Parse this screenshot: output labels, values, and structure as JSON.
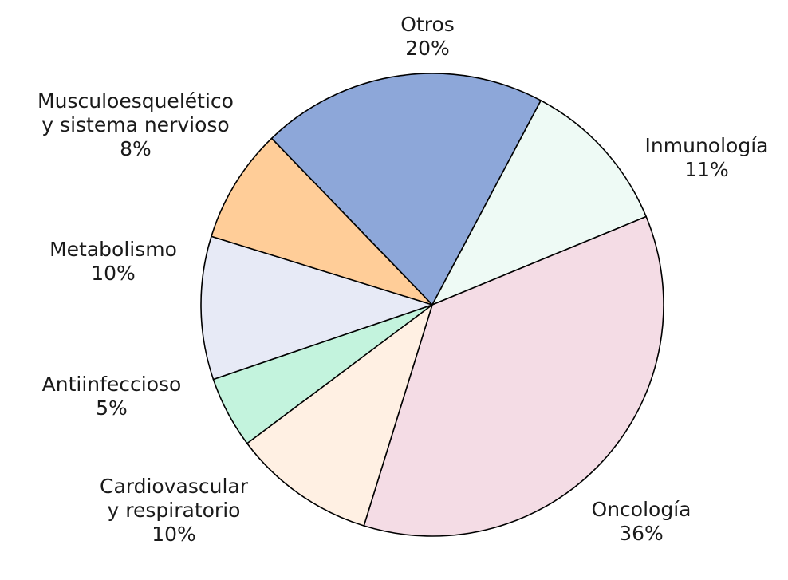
{
  "chart_data": {
    "type": "pie",
    "start": "Otros",
    "direction": "clockwise",
    "slices": [
      {
        "label": [
          "Otros"
        ],
        "value": 20,
        "value_text": "20%",
        "color": "#8da7d9"
      },
      {
        "label": [
          "Inmunología"
        ],
        "value": 11,
        "value_text": "11%",
        "color": "#eefaf5"
      },
      {
        "label": [
          "Oncología"
        ],
        "value": 36,
        "value_text": "36%",
        "color": "#f4dce5"
      },
      {
        "label": [
          "Cardiovascular",
          "y respiratorio"
        ],
        "value": 10,
        "value_text": "10%",
        "color": "#fff0e3"
      },
      {
        "label": [
          "Antiinfeccioso"
        ],
        "value": 5,
        "value_text": "5%",
        "color": "#c3f3dd"
      },
      {
        "label": [
          "Metabolismo"
        ],
        "value": 10,
        "value_text": "10%",
        "color": "#e7eaf6"
      },
      {
        "label": [
          "Musculoesquelético",
          "y sistema nervioso"
        ],
        "value": 8,
        "value_text": "8%",
        "color": "#ffcd98"
      }
    ]
  }
}
